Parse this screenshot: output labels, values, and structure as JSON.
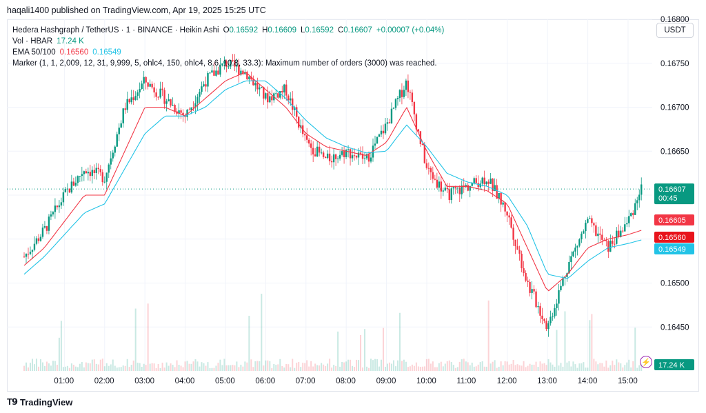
{
  "publisher_line": "haqali1400 published on TradingView.com, Apr 19, 2025 15:25 UTC",
  "legend": {
    "symbol": "Hedera Hashgraph / TetherUS · 1 · BINANCE · Heikin Ashi",
    "o_label": "O",
    "o_value": "0.16592",
    "h_label": "H",
    "h_value": "0.16609",
    "l_label": "L",
    "l_value": "0.16592",
    "c_label": "C",
    "c_value": "0.16607",
    "change": "+0.00007 (+0.04%)",
    "vol_label": "Vol · HBAR",
    "vol_value": "17.24 K",
    "ema_label": "EMA 50/100",
    "ema50_value": "0.16560",
    "ema100_value": "0.16549",
    "marker": "Marker (1, 1, 2,009, 12, 31, 9,999, 5, ohlc4, 150, ohlc4, 8.6, 10.8, 33.3): Maximum number of orders (3000) was reached."
  },
  "currency_button": "USDT",
  "footer_brand": "TradingView",
  "colors": {
    "up": "#089981",
    "down": "#f23645",
    "ema50": "#f23645",
    "ema100": "#22c3e6",
    "grid": "#f0f3fa"
  },
  "price_tags": {
    "last": "0.16607",
    "countdown": "00:45",
    "ema_a": "0.16605",
    "ema50": "0.16560",
    "ema100": "0.16549",
    "volume": "17.24 K"
  },
  "chart_data": {
    "type": "line",
    "title": "Hedera Hashgraph / TetherUS · 1 · BINANCE · Heikin Ashi",
    "x_ticks": [
      "01:00",
      "02:00",
      "03:00",
      "04:00",
      "05:00",
      "06:00",
      "07:00",
      "08:00",
      "09:00",
      "10:00",
      "11:00",
      "12:00",
      "13:00",
      "14:00",
      "15:00"
    ],
    "y_ticks": [
      "0.16450",
      "0.16500",
      "0.16550",
      "0.16600",
      "0.16650",
      "0.16700",
      "0.16750",
      "0.16800"
    ],
    "ylim": [
      0.164,
      0.168
    ],
    "grid": true,
    "time_hours": [
      0.0,
      0.5,
      1.0,
      1.5,
      2.0,
      2.5,
      3.0,
      3.5,
      4.0,
      4.5,
      5.0,
      5.5,
      6.0,
      6.5,
      7.0,
      7.5,
      8.0,
      8.5,
      9.0,
      9.5,
      10.0,
      10.5,
      11.0,
      11.5,
      12.0,
      12.5,
      13.0,
      13.5,
      14.0,
      14.5,
      15.0,
      15.33
    ],
    "series": [
      {
        "kind": "price",
        "values": [
          0.1653,
          0.1656,
          0.166,
          0.1663,
          0.1662,
          0.167,
          0.1673,
          0.1671,
          0.1669,
          0.1673,
          0.1675,
          0.1674,
          0.1671,
          0.1672,
          0.1666,
          0.1664,
          0.1665,
          0.1664,
          0.1668,
          0.1673,
          0.1663,
          0.166,
          0.1661,
          0.1662,
          0.1658,
          0.165,
          0.1645,
          0.1652,
          0.1657,
          0.1654,
          0.1657,
          0.16607
        ]
      },
      {
        "name": "EMA 50",
        "values": [
          0.1652,
          0.1654,
          0.1657,
          0.166,
          0.166,
          0.1665,
          0.167,
          0.167,
          0.1669,
          0.1671,
          0.1673,
          0.1674,
          0.1672,
          0.167,
          0.1667,
          0.16655,
          0.1665,
          0.16645,
          0.1666,
          0.167,
          0.1665,
          0.1661,
          0.1661,
          0.16605,
          0.1659,
          0.1654,
          0.1649,
          0.1651,
          0.1654,
          0.1655,
          0.16555,
          0.1656
        ]
      },
      {
        "name": "EMA 100",
        "values": [
          0.1651,
          0.1653,
          0.16555,
          0.1658,
          0.1659,
          0.1663,
          0.1667,
          0.1669,
          0.1669,
          0.167,
          0.1672,
          0.1673,
          0.1673,
          0.1671,
          0.16685,
          0.16665,
          0.16655,
          0.16648,
          0.1665,
          0.1668,
          0.16655,
          0.16625,
          0.16615,
          0.1661,
          0.166,
          0.16565,
          0.1651,
          0.16505,
          0.16525,
          0.1654,
          0.16545,
          0.16549
        ]
      }
    ]
  }
}
